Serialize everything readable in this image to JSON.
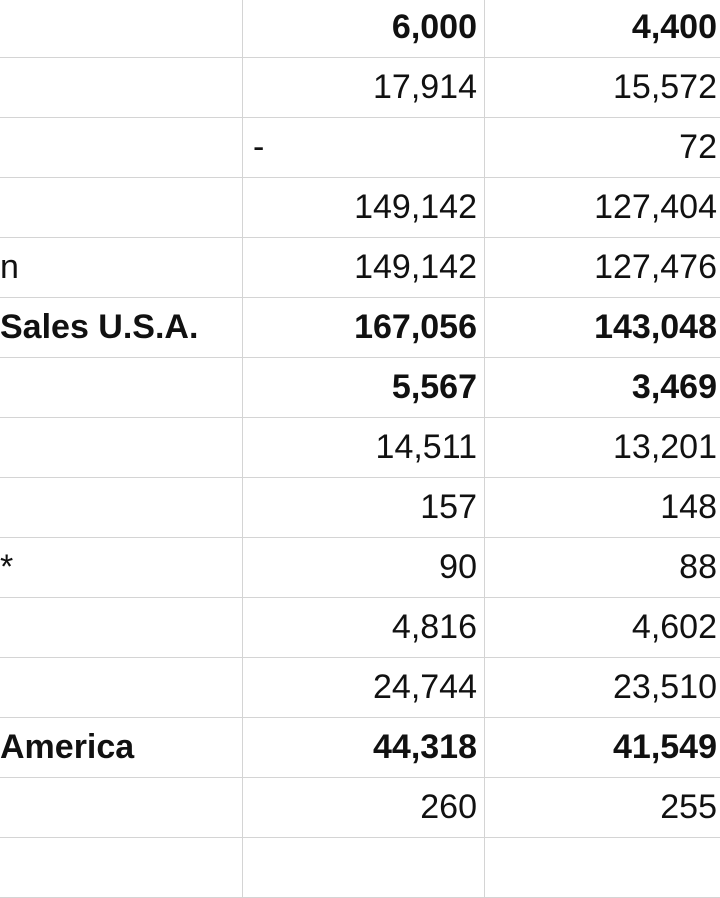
{
  "rows": [
    {
      "label": "",
      "col1": "6,000",
      "col2": "4,400",
      "bold": true
    },
    {
      "label": "",
      "col1": "17,914",
      "col2": "15,572",
      "bold": false
    },
    {
      "label": "",
      "col1": "-",
      "col2": "72",
      "bold": false
    },
    {
      "label": "",
      "col1": "149,142",
      "col2": "127,404",
      "bold": false
    },
    {
      "label": "n",
      "col1": "149,142",
      "col2": "127,476",
      "bold": false
    },
    {
      "label": "Sales U.S.A.",
      "col1": "167,056",
      "col2": "143,048",
      "bold": true
    },
    {
      "label": "",
      "col1": "5,567",
      "col2": "3,469",
      "bold": true
    },
    {
      "label": "",
      "col1": "14,511",
      "col2": "13,201",
      "bold": false
    },
    {
      "label": "",
      "col1": "157",
      "col2": "148",
      "bold": false
    },
    {
      "label": "*",
      "col1": "90",
      "col2": "88",
      "bold": false
    },
    {
      "label": "",
      "col1": "4,816",
      "col2": "4,602",
      "bold": false
    },
    {
      "label": "",
      "col1": "24,744",
      "col2": "23,510",
      "bold": false
    },
    {
      "label": "America",
      "col1": "44,318",
      "col2": "41,549",
      "bold": true
    },
    {
      "label": "",
      "col1": "260",
      "col2": "255",
      "bold": false
    },
    {
      "label": "",
      "col1": "",
      "col2": "",
      "bold": false
    }
  ]
}
